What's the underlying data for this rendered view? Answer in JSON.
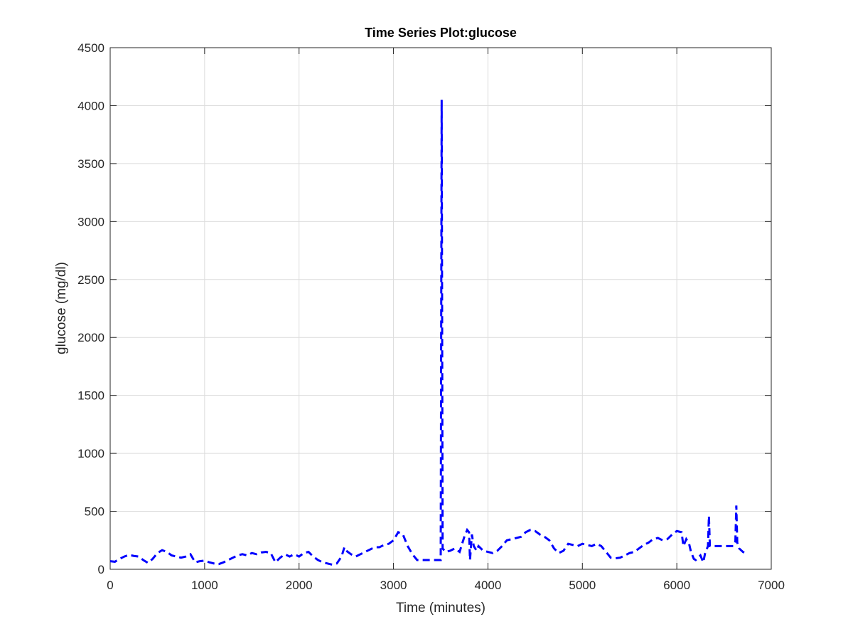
{
  "chart_data": {
    "type": "line",
    "title": "Time Series Plot:glucose",
    "xlabel": "Time (minutes)",
    "ylabel": "glucose (mg/dl)",
    "x": [
      0,
      50,
      100,
      150,
      200,
      250,
      300,
      350,
      400,
      450,
      500,
      550,
      600,
      650,
      700,
      750,
      800,
      850,
      900,
      950,
      1000,
      1050,
      1100,
      1150,
      1200,
      1250,
      1300,
      1350,
      1400,
      1450,
      1500,
      1550,
      1600,
      1650,
      1700,
      1750,
      1800,
      1850,
      1900,
      1950,
      2000,
      2050,
      2100,
      2150,
      2200,
      2250,
      2300,
      2350,
      2400,
      2450,
      2480,
      2500,
      2550,
      2600,
      2650,
      2700,
      2750,
      2800,
      2850,
      2900,
      2950,
      3000,
      3050,
      3100,
      3150,
      3200,
      3250,
      3300,
      3350,
      3400,
      3450,
      3500,
      3510,
      3520,
      3550,
      3600,
      3650,
      3700,
      3750,
      3780,
      3800,
      3810,
      3830,
      3850,
      3880,
      3900,
      3950,
      4000,
      4050,
      4100,
      4150,
      4200,
      4250,
      4300,
      4350,
      4400,
      4450,
      4500,
      4550,
      4600,
      4650,
      4700,
      4750,
      4800,
      4850,
      4900,
      4950,
      5000,
      5050,
      5100,
      5150,
      5200,
      5250,
      5300,
      5350,
      5400,
      5450,
      5500,
      5550,
      5600,
      5650,
      5700,
      5750,
      5800,
      5850,
      5900,
      5950,
      6000,
      6050,
      6070,
      6100,
      6130,
      6150,
      6180,
      6200,
      6250,
      6280,
      6300,
      6330,
      6340,
      6350,
      6400,
      6500,
      6600,
      6620,
      6630,
      6640,
      6660,
      6700,
      6720
    ],
    "series": [
      {
        "name": "glucose",
        "color": "#0000ff",
        "values": [
          70,
          65,
          90,
          110,
          125,
          115,
          110,
          80,
          55,
          90,
          140,
          165,
          150,
          120,
          110,
          100,
          110,
          130,
          60,
          70,
          75,
          60,
          50,
          45,
          60,
          80,
          100,
          120,
          130,
          120,
          140,
          130,
          145,
          150,
          140,
          60,
          100,
          130,
          110,
          130,
          110,
          140,
          150,
          110,
          80,
          60,
          50,
          40,
          50,
          110,
          190,
          160,
          130,
          110,
          130,
          150,
          170,
          190,
          190,
          210,
          220,
          250,
          320,
          300,
          200,
          130,
          80,
          80,
          80,
          80,
          80,
          80,
          4050,
          180,
          150,
          160,
          180,
          150,
          280,
          340,
          320,
          80,
          300,
          200,
          160,
          200,
          160,
          150,
          140,
          160,
          200,
          250,
          260,
          270,
          280,
          320,
          340,
          330,
          300,
          280,
          250,
          180,
          140,
          160,
          220,
          210,
          200,
          220,
          210,
          200,
          220,
          200,
          150,
          100,
          95,
          100,
          120,
          140,
          150,
          180,
          210,
          230,
          260,
          270,
          250,
          260,
          300,
          330,
          320,
          200,
          260,
          220,
          150,
          90,
          80,
          120,
          60,
          140,
          200,
          460,
          200,
          200,
          200,
          200,
          240,
          550,
          230,
          180,
          150,
          140
        ]
      }
    ],
    "xlim": [
      0,
      7000
    ],
    "xticks": [
      0,
      1000,
      2000,
      3000,
      4000,
      5000,
      6000,
      7000
    ],
    "ylim": [
      0,
      4500
    ],
    "yticks": [
      0,
      500,
      1000,
      1500,
      2000,
      2500,
      3000,
      3500,
      4000,
      4500
    ],
    "grid": true
  }
}
